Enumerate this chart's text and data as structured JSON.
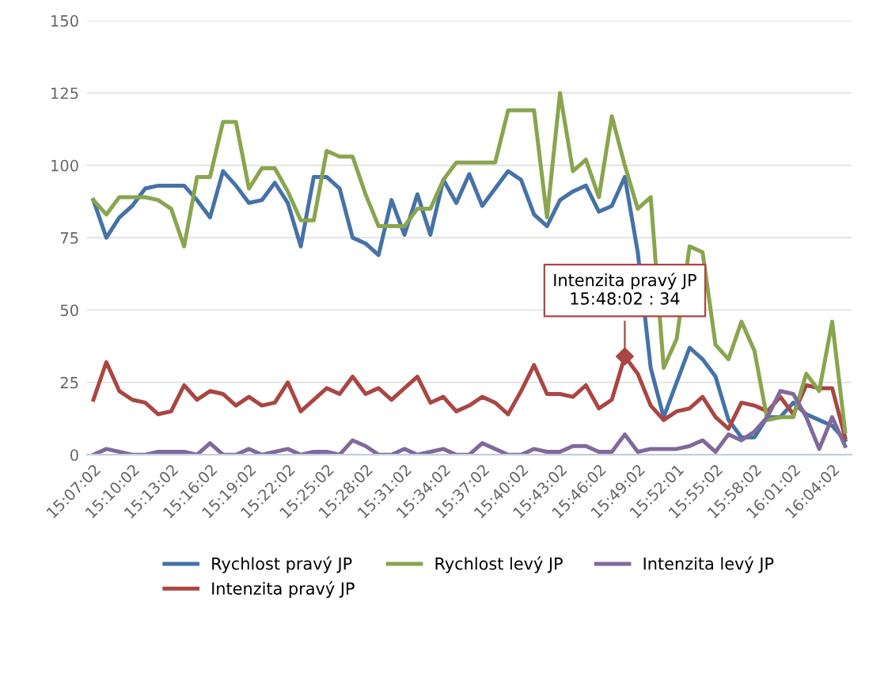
{
  "chart_data": {
    "type": "line",
    "categories": [
      "15:07:02",
      null,
      null,
      "15:10:02",
      null,
      null,
      "15:13:02",
      null,
      null,
      "15:16:02",
      null,
      null,
      "15:19:02",
      null,
      null,
      "15:22:02",
      null,
      null,
      "15:25:02",
      null,
      null,
      "15:28:02",
      null,
      null,
      "15:31:02",
      null,
      null,
      "15:34:02",
      null,
      null,
      "15:37:02",
      null,
      null,
      "15:40:02",
      null,
      null,
      "15:43:02",
      null,
      null,
      "15:46:02",
      null,
      null,
      "15:49:02",
      null,
      null,
      "15:52:01",
      null,
      null,
      "15:55:02",
      null,
      null,
      "15:58:02",
      null,
      null,
      "16:01:02",
      null,
      null,
      "16:04:02",
      null
    ],
    "series": [
      {
        "name": "Rychlost pravý JP",
        "color": "#4572a7",
        "values": [
          88,
          75,
          82,
          86,
          92,
          93,
          93,
          93,
          88,
          82,
          98,
          93,
          87,
          88,
          94,
          87,
          72,
          96,
          96,
          92,
          75,
          73,
          69,
          88,
          76,
          90,
          76,
          95,
          87,
          97,
          86,
          92,
          98,
          95,
          83,
          79,
          88,
          91,
          93,
          84,
          86,
          96,
          70,
          30,
          13,
          25,
          37,
          33,
          27,
          12,
          6,
          6,
          13,
          13,
          18,
          14,
          12,
          10,
          5
        ]
      },
      {
        "name": "Intenzita pravý JP",
        "color": "#aa4643",
        "values": [
          19,
          32,
          22,
          19,
          18,
          14,
          15,
          24,
          19,
          22,
          21,
          17,
          20,
          17,
          18,
          25,
          15,
          19,
          23,
          21,
          27,
          21,
          23,
          19,
          23,
          27,
          18,
          20,
          15,
          17,
          20,
          18,
          14,
          22,
          31,
          21,
          21,
          20,
          24,
          16,
          19,
          34,
          28,
          17,
          12,
          15,
          16,
          20,
          13,
          9,
          18,
          17,
          15,
          20,
          14,
          24,
          23,
          23,
          6
        ]
      },
      {
        "name": "Rychlost levý JP",
        "color": "#89a54e",
        "values": [
          88,
          83,
          89,
          89,
          89,
          88,
          85,
          72,
          96,
          96,
          115,
          115,
          92,
          99,
          99,
          91,
          81,
          81,
          105,
          103,
          103,
          90,
          79,
          79,
          79,
          85,
          85,
          95,
          101,
          101,
          101,
          101,
          119,
          119,
          119,
          82,
          125,
          98,
          102,
          89,
          117,
          100,
          85,
          89,
          30,
          40,
          72,
          70,
          38,
          33,
          46,
          36,
          12,
          13,
          13,
          28,
          22,
          46,
          8
        ]
      },
      {
        "name": "Intenzita levý JP",
        "color": "#80699b",
        "values": [
          0,
          2,
          1,
          0,
          0,
          1,
          1,
          1,
          0,
          4,
          0,
          0,
          2,
          0,
          1,
          2,
          0,
          1,
          1,
          0,
          5,
          3,
          0,
          0,
          2,
          0,
          1,
          2,
          0,
          0,
          4,
          2,
          0,
          0,
          2,
          1,
          1,
          3,
          3,
          1,
          1,
          7,
          1,
          2,
          2,
          2,
          3,
          5,
          1,
          7,
          5,
          8,
          13,
          22,
          21,
          13,
          2,
          13,
          3
        ]
      }
    ],
    "ylim": [
      0,
      150
    ],
    "yticks": [
      0,
      25,
      50,
      75,
      100,
      125,
      150
    ],
    "grid": "y",
    "legend": "bottom",
    "annotations": [
      {
        "text": "Intenzita pravý JP\n15:48:02 : 34",
        "y": 34
      }
    ]
  }
}
